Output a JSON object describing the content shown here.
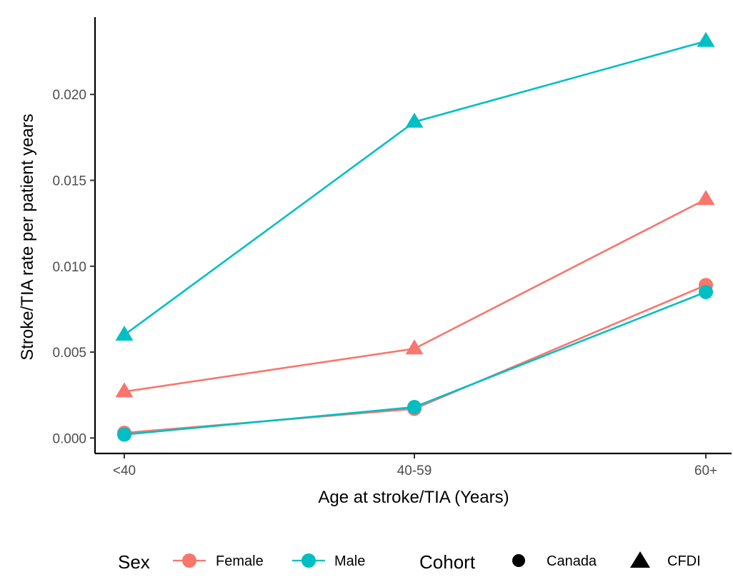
{
  "chart_data": {
    "type": "line",
    "categories": [
      "<40",
      "40-59",
      "60+"
    ],
    "ylabel": "Stroke/TIA rate per patient years",
    "xlabel": "Age at stroke/TIA (Years)",
    "ylim": [
      -0.0009,
      0.0245
    ],
    "yticks": [
      0.0,
      0.005,
      0.01,
      0.015,
      0.02
    ],
    "ytick_labels": [
      "0.000",
      "0.005",
      "0.010",
      "0.015",
      "0.020"
    ],
    "grid": false,
    "legend_position": "bottom",
    "series": [
      {
        "sex": "Male",
        "cohort": "CFDI",
        "values": [
          0.006,
          0.0184,
          0.0231
        ]
      },
      {
        "sex": "Female",
        "cohort": "CFDI",
        "values": [
          0.0027,
          0.0052,
          0.0139
        ]
      },
      {
        "sex": "Female",
        "cohort": "Canada",
        "values": [
          0.0003,
          0.0017,
          0.0089
        ]
      },
      {
        "sex": "Male",
        "cohort": "Canada",
        "values": [
          0.0002,
          0.0018,
          0.0085
        ]
      }
    ],
    "colors": {
      "Female": "#F8766D",
      "Male": "#00BFC4"
    },
    "legend": {
      "sex_title": "Sex",
      "sex_items": [
        "Female",
        "Male"
      ],
      "cohort_title": "Cohort",
      "cohort_items": [
        "Canada",
        "CFDI"
      ]
    }
  }
}
